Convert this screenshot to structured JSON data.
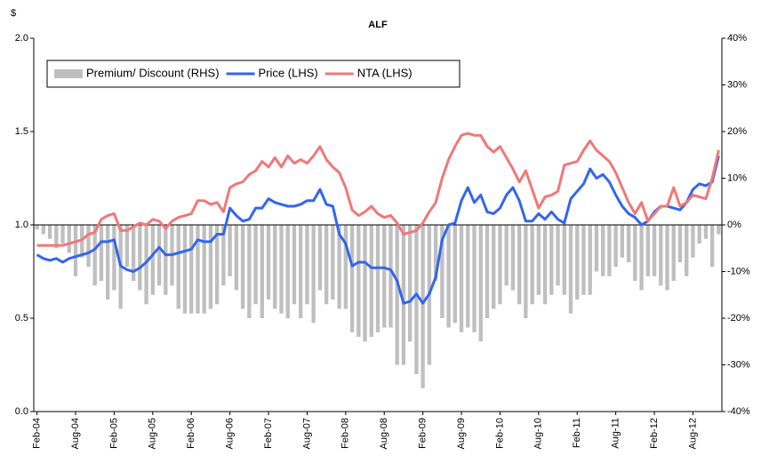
{
  "chart_data": {
    "type": "combo",
    "title": "ALF",
    "y_unit_label": "$",
    "categories": [
      "Feb-04",
      null,
      null,
      null,
      null,
      null,
      "Aug-04",
      null,
      null,
      null,
      null,
      null,
      "Feb-05",
      null,
      null,
      null,
      null,
      null,
      "Aug-05",
      null,
      null,
      null,
      null,
      null,
      "Feb-06",
      null,
      null,
      null,
      null,
      null,
      "Aug-06",
      null,
      null,
      null,
      null,
      null,
      "Feb-07",
      null,
      null,
      null,
      null,
      null,
      "Aug-07",
      null,
      null,
      null,
      null,
      null,
      "Feb-08",
      null,
      null,
      null,
      null,
      null,
      "Aug-08",
      null,
      null,
      null,
      null,
      null,
      "Feb-09",
      null,
      null,
      null,
      null,
      null,
      "Aug-09",
      null,
      null,
      null,
      null,
      null,
      "Feb-10",
      null,
      null,
      null,
      null,
      null,
      "Aug-10",
      null,
      null,
      null,
      null,
      null,
      "Feb-11",
      null,
      null,
      null,
      null,
      null,
      "Aug-11",
      null,
      null,
      null,
      null,
      null,
      "Feb-12",
      null,
      null,
      null,
      null,
      null,
      "Aug-12",
      null,
      null,
      null,
      null
    ],
    "series": [
      {
        "name": "Premium/ Discount (RHS)",
        "kind": "bar",
        "axis": "y2",
        "color": "#bfbfbf",
        "values": [
          -1,
          -2,
          -3,
          -5,
          -4,
          -6,
          -11,
          -7,
          -9,
          -13,
          -12,
          -16,
          -14,
          -18,
          -9,
          -12,
          -14,
          -17,
          -15,
          -13,
          -15,
          -13,
          -18,
          -19,
          -19,
          -19,
          -19,
          -18,
          -17,
          -13,
          -11,
          -14,
          -18,
          -20,
          -17,
          -20,
          -16,
          -18,
          -19,
          -20,
          -17,
          -20,
          -17,
          -21,
          -14,
          -17,
          -16,
          -18,
          -18,
          -23,
          -24,
          -25,
          -24,
          -23,
          -22,
          -22,
          -30,
          -30,
          -25,
          -32,
          -35,
          -30,
          -12,
          -20,
          -22,
          -21,
          -23,
          -22,
          -23,
          -25,
          -20,
          -18,
          -17,
          -13,
          -14,
          -17,
          -20,
          -17,
          -15,
          -17,
          -15,
          -13,
          -15,
          -19,
          -16,
          -15,
          -15,
          -10,
          -11,
          -11,
          -9,
          -7,
          -8,
          -12,
          -14,
          -11,
          -11,
          -13,
          -14,
          -12,
          -8,
          -11,
          -7,
          -4,
          -3,
          -9,
          -2
        ]
      },
      {
        "name": "Price (LHS)",
        "kind": "line",
        "axis": "y",
        "color": "#3366ee",
        "values": [
          0.84,
          0.82,
          0.81,
          0.82,
          0.8,
          0.82,
          0.83,
          0.84,
          0.85,
          0.87,
          0.91,
          0.91,
          0.92,
          0.78,
          0.76,
          0.75,
          0.77,
          0.8,
          0.84,
          0.88,
          0.84,
          0.84,
          0.85,
          0.86,
          0.87,
          0.92,
          0.91,
          0.91,
          0.95,
          0.95,
          1.09,
          1.05,
          1.02,
          1.03,
          1.09,
          1.09,
          1.14,
          1.12,
          1.11,
          1.1,
          1.1,
          1.11,
          1.13,
          1.13,
          1.19,
          1.11,
          1.1,
          0.95,
          0.9,
          0.78,
          0.8,
          0.8,
          0.77,
          0.77,
          0.77,
          0.76,
          0.7,
          0.58,
          0.59,
          0.63,
          0.58,
          0.63,
          0.72,
          0.92,
          1.0,
          1.01,
          1.13,
          1.2,
          1.12,
          1.16,
          1.07,
          1.06,
          1.09,
          1.16,
          1.2,
          1.13,
          1.02,
          1.02,
          1.06,
          1.03,
          1.07,
          1.03,
          1.01,
          1.14,
          1.18,
          1.22,
          1.3,
          1.25,
          1.27,
          1.23,
          1.16,
          1.1,
          1.06,
          1.04,
          1.0,
          1.02,
          1.07,
          1.1,
          1.1,
          1.09,
          1.08,
          1.12,
          1.19,
          1.22,
          1.21,
          1.23,
          1.37
        ]
      },
      {
        "name": "NTA (LHS)",
        "kind": "line",
        "axis": "y",
        "color": "#f07878",
        "values": [
          0.89,
          0.89,
          0.89,
          0.89,
          0.89,
          0.9,
          0.91,
          0.92,
          0.95,
          0.96,
          1.03,
          1.05,
          1.06,
          0.97,
          0.97,
          0.99,
          1.01,
          1.0,
          1.03,
          1.02,
          0.98,
          1.02,
          1.04,
          1.05,
          1.06,
          1.13,
          1.13,
          1.11,
          1.12,
          1.07,
          1.2,
          1.22,
          1.23,
          1.27,
          1.29,
          1.34,
          1.31,
          1.36,
          1.31,
          1.37,
          1.33,
          1.35,
          1.33,
          1.37,
          1.42,
          1.35,
          1.31,
          1.28,
          1.2,
          1.08,
          1.05,
          1.07,
          1.1,
          1.06,
          1.04,
          1.05,
          1.01,
          0.95,
          0.96,
          0.97,
          1.01,
          1.07,
          1.12,
          1.25,
          1.35,
          1.42,
          1.48,
          1.49,
          1.48,
          1.48,
          1.42,
          1.39,
          1.42,
          1.36,
          1.3,
          1.23,
          1.29,
          1.19,
          1.09,
          1.15,
          1.16,
          1.18,
          1.32,
          1.33,
          1.34,
          1.4,
          1.45,
          1.4,
          1.37,
          1.34,
          1.28,
          1.2,
          1.12,
          1.06,
          1.12,
          1.02,
          1.06,
          1.1,
          1.1,
          1.2,
          1.1,
          1.12,
          1.16,
          1.15,
          1.14,
          1.25,
          1.4
        ]
      }
    ],
    "ylim": [
      0,
      2
    ],
    "yticks": [
      {
        "value": 0,
        "label": "0.0"
      },
      {
        "value": 0.5,
        "label": "0.5"
      },
      {
        "value": 1,
        "label": "1.0"
      },
      {
        "value": 1.5,
        "label": "1.5"
      },
      {
        "value": 2,
        "label": "2.0"
      }
    ],
    "y2lim": [
      -40,
      40
    ],
    "y2ticks": [
      {
        "value": -40,
        "label": "-40%"
      },
      {
        "value": -30,
        "label": "-30%"
      },
      {
        "value": -20,
        "label": "-20%"
      },
      {
        "value": -10,
        "label": "-10%"
      },
      {
        "value": 0,
        "label": "0%"
      },
      {
        "value": 10,
        "label": "10%"
      },
      {
        "value": 20,
        "label": "20%"
      },
      {
        "value": 30,
        "label": "30%"
      },
      {
        "value": 40,
        "label": "40%"
      }
    ],
    "grid": false,
    "legend": "top-left"
  }
}
